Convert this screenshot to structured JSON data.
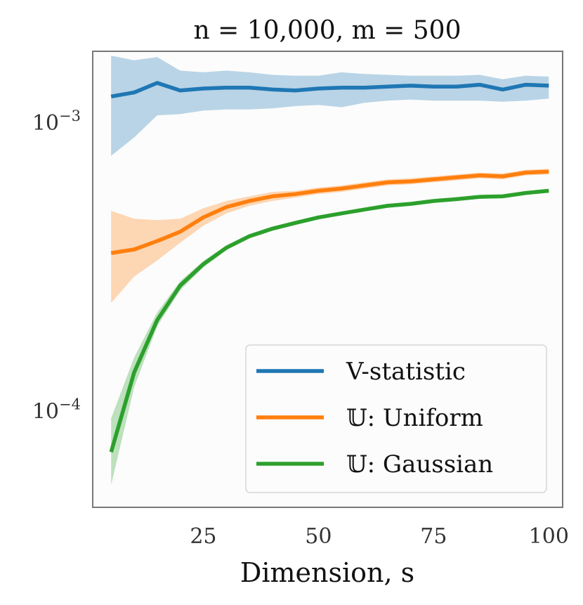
{
  "chart_data": {
    "type": "line",
    "title": "n = 10,000, m = 500",
    "xlabel": "Dimension, s",
    "ylabel": "",
    "yscale": "log",
    "xlim": [
      1,
      103
    ],
    "ylim": [
      4.6e-05,
      0.00175
    ],
    "grid": false,
    "legend_position": "bottom-right",
    "x_ticks": [
      {
        "value": 25,
        "label": "25"
      },
      {
        "value": 50,
        "label": "50"
      },
      {
        "value": 75,
        "label": "75"
      },
      {
        "value": 100,
        "label": "100"
      }
    ],
    "y_ticks": [
      {
        "value": 0.001,
        "base": "10",
        "exp": "−3"
      },
      {
        "value": 0.0001,
        "base": "10",
        "exp": "−4"
      }
    ],
    "x": [
      5,
      10,
      15,
      20,
      25,
      30,
      35,
      40,
      45,
      50,
      55,
      60,
      65,
      70,
      75,
      80,
      85,
      90,
      95,
      100
    ],
    "series": [
      {
        "name": "V-statistic",
        "color": "#1f77b4",
        "values": [
          0.00122,
          0.00126,
          0.00136,
          0.00128,
          0.0013,
          0.00131,
          0.00131,
          0.00129,
          0.00128,
          0.0013,
          0.00131,
          0.00131,
          0.00132,
          0.00133,
          0.00132,
          0.00132,
          0.00134,
          0.00129,
          0.00134,
          0.00133
        ],
        "lower": [
          0.00076,
          0.00088,
          0.00105,
          0.00106,
          0.00109,
          0.0011,
          0.0011,
          0.00111,
          0.00113,
          0.00114,
          0.00112,
          0.00116,
          0.00118,
          0.00119,
          0.00118,
          0.00118,
          0.00118,
          0.00117,
          0.00118,
          0.0012
        ],
        "upper": [
          0.00169,
          0.00163,
          0.00167,
          0.0015,
          0.00148,
          0.0015,
          0.00148,
          0.00145,
          0.00144,
          0.00144,
          0.00148,
          0.00146,
          0.00145,
          0.00144,
          0.00144,
          0.00144,
          0.00145,
          0.0014,
          0.00144,
          0.00143
        ]
      },
      {
        "name": "𝕌: Uniform",
        "color": "#ff7f0e",
        "values": [
          0.00035,
          0.00036,
          0.000385,
          0.000415,
          0.000465,
          0.000505,
          0.00053,
          0.00055,
          0.00056,
          0.000575,
          0.000585,
          0.0006,
          0.000615,
          0.00062,
          0.00063,
          0.00064,
          0.00065,
          0.000645,
          0.000665,
          0.00067
        ],
        "lower": [
          0.000235,
          0.00029,
          0.00033,
          0.00038,
          0.000435,
          0.00048,
          0.00051,
          0.00053,
          0.000545,
          0.00056,
          0.00057,
          0.000585,
          0.0006,
          0.000605,
          0.000615,
          0.000625,
          0.000635,
          0.00063,
          0.00065,
          0.000655
        ],
        "upper": [
          0.00049,
          0.00046,
          0.000455,
          0.00046,
          0.0005,
          0.00053,
          0.00055,
          0.00057,
          0.000575,
          0.00059,
          0.0006,
          0.000615,
          0.00063,
          0.000635,
          0.000645,
          0.000655,
          0.000665,
          0.00066,
          0.00068,
          0.000685
        ]
      },
      {
        "name": "𝕌: Gaussian",
        "color": "#2ca02c",
        "values": [
          7.15e-05,
          0.000135,
          0.000205,
          0.00027,
          0.00032,
          0.000365,
          0.0004,
          0.000425,
          0.000445,
          0.000465,
          0.00048,
          0.000495,
          0.00051,
          0.000518,
          0.00053,
          0.000538,
          0.000548,
          0.00055,
          0.000565,
          0.000575
        ],
        "lower": [
          5.5e-05,
          0.00012,
          0.000195,
          0.00026,
          0.000312,
          0.000358,
          0.000393,
          0.000418,
          0.000438,
          0.000458,
          0.000473,
          0.000488,
          0.000502,
          0.00051,
          0.000522,
          0.00053,
          0.00054,
          0.000542,
          0.000557,
          0.000567
        ],
        "upper": [
          9.35e-05,
          0.000152,
          0.000218,
          0.00028,
          0.000328,
          0.000372,
          0.000407,
          0.000432,
          0.000452,
          0.000472,
          0.000487,
          0.000502,
          0.000518,
          0.000526,
          0.000538,
          0.000546,
          0.000556,
          0.000558,
          0.000573,
          0.000583
        ]
      }
    ]
  }
}
